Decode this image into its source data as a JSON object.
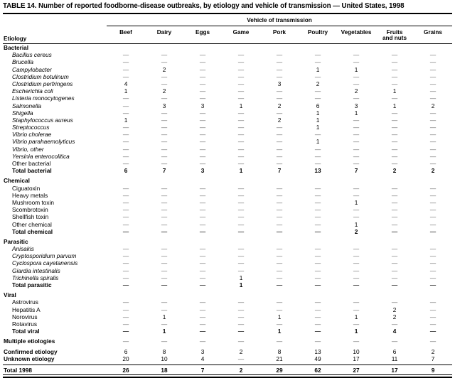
{
  "table": {
    "title": "TABLE 14. Number of reported foodborne-disease outbreaks, by etiology and vehicle of transmission — United States, 1998",
    "spanner": "Vehicle of transmission",
    "etiology_header": "Etiology",
    "dash": "—",
    "columns": [
      "Beef",
      "Dairy",
      "Eggs",
      "Game",
      "Pork",
      "Poultry",
      "Vegetables",
      "Fruits\nand nuts",
      "Grains"
    ],
    "sections": [
      {
        "header": "Bacterial",
        "gap_before": false,
        "rows": [
          {
            "label": "Bacillus cereus",
            "style": "species",
            "values": [
              "—",
              "—",
              "—",
              "—",
              "—",
              "—",
              "—",
              "—",
              "—"
            ]
          },
          {
            "label": "Brucella",
            "style": "species",
            "values": [
              "—",
              "—",
              "—",
              "—",
              "—",
              "—",
              "—",
              "—",
              "—"
            ]
          },
          {
            "label": "Campylobacter",
            "style": "species",
            "values": [
              "—",
              "2",
              "—",
              "—",
              "—",
              "1",
              "1",
              "—",
              "—"
            ]
          },
          {
            "label": "Clostridium botulinum",
            "style": "species",
            "values": [
              "—",
              "—",
              "—",
              "—",
              "—",
              "—",
              "—",
              "—",
              "—"
            ]
          },
          {
            "label": "Clostridium perfringens",
            "style": "species",
            "values": [
              "4",
              "—",
              "—",
              "—",
              "3",
              "2",
              "—",
              "—",
              "—"
            ]
          },
          {
            "label": "Escherichia coli",
            "style": "species",
            "values": [
              "1",
              "2",
              "—",
              "—",
              "—",
              "—",
              "2",
              "1",
              "—"
            ]
          },
          {
            "label": "Listeria monocytogenes",
            "style": "species",
            "values": [
              "—",
              "—",
              "—",
              "—",
              "—",
              "—",
              "—",
              "—",
              "—"
            ]
          },
          {
            "label": "Salmonella",
            "style": "species",
            "values": [
              "—",
              "3",
              "3",
              "1",
              "2",
              "6",
              "3",
              "1",
              "2"
            ]
          },
          {
            "label": "Shigella",
            "style": "species",
            "values": [
              "—",
              "—",
              "—",
              "—",
              "—",
              "1",
              "1",
              "—",
              "—"
            ]
          },
          {
            "label": "Staphylococcus aureus",
            "style": "species",
            "values": [
              "1",
              "—",
              "—",
              "—",
              "2",
              "1",
              "—",
              "—",
              "—"
            ]
          },
          {
            "label": "Streptococcus",
            "style": "species",
            "values": [
              "—",
              "—",
              "—",
              "—",
              "—",
              "1",
              "—",
              "—",
              "—"
            ]
          },
          {
            "label": "Vibrio cholerae",
            "style": "species",
            "values": [
              "—",
              "—",
              "—",
              "—",
              "—",
              "—",
              "—",
              "—",
              "—"
            ]
          },
          {
            "label": "Vibrio parahaemolyticus",
            "style": "species",
            "values": [
              "—",
              "—",
              "—",
              "—",
              "—",
              "1",
              "—",
              "—",
              "—"
            ]
          },
          {
            "label": "Vibrio, other",
            "style": "species",
            "values": [
              "—",
              "—",
              "—",
              "—",
              "—",
              "—",
              "—",
              "—",
              "—"
            ]
          },
          {
            "label": "Yersinia enterocolitica",
            "style": "species",
            "values": [
              "—",
              "—",
              "—",
              "—",
              "—",
              "—",
              "—",
              "—",
              "—"
            ]
          },
          {
            "label": "Other bacterial",
            "style": "plain",
            "values": [
              "—",
              "—",
              "—",
              "—",
              "—",
              "—",
              "—",
              "—",
              "—"
            ]
          },
          {
            "label": "Total bacterial",
            "style": "total",
            "values": [
              "6",
              "7",
              "3",
              "1",
              "7",
              "13",
              "7",
              "2",
              "2"
            ]
          }
        ]
      },
      {
        "header": "Chemical",
        "gap_before": true,
        "rows": [
          {
            "label": "Ciguatoxin",
            "style": "plain",
            "values": [
              "—",
              "—",
              "—",
              "—",
              "—",
              "—",
              "—",
              "—",
              "—"
            ]
          },
          {
            "label": "Heavy metals",
            "style": "plain",
            "values": [
              "—",
              "—",
              "—",
              "—",
              "—",
              "—",
              "—",
              "—",
              "—"
            ]
          },
          {
            "label": "Mushroom toxin",
            "style": "plain",
            "values": [
              "—",
              "—",
              "—",
              "—",
              "—",
              "—",
              "1",
              "—",
              "—"
            ]
          },
          {
            "label": "Scombrotoxin",
            "style": "plain",
            "values": [
              "—",
              "—",
              "—",
              "—",
              "—",
              "—",
              "—",
              "—",
              "—"
            ]
          },
          {
            "label": "Shellfish toxin",
            "style": "plain",
            "values": [
              "—",
              "—",
              "—",
              "—",
              "—",
              "—",
              "—",
              "—",
              "—"
            ]
          },
          {
            "label": "Other chemical",
            "style": "plain",
            "values": [
              "—",
              "—",
              "—",
              "—",
              "—",
              "—",
              "1",
              "—",
              "—"
            ]
          },
          {
            "label": "Total chemical",
            "style": "total",
            "values": [
              "—",
              "—",
              "—",
              "—",
              "—",
              "—",
              "2",
              "—",
              "—"
            ]
          }
        ]
      },
      {
        "header": "Parasitic",
        "gap_before": true,
        "rows": [
          {
            "label": "Anisakis",
            "style": "species",
            "values": [
              "—",
              "—",
              "—",
              "—",
              "—",
              "—",
              "—",
              "—",
              "—"
            ]
          },
          {
            "label": "Cryptosporidium parvum",
            "style": "species",
            "values": [
              "—",
              "—",
              "—",
              "—",
              "—",
              "—",
              "—",
              "—",
              "—"
            ]
          },
          {
            "label": "Cyclospora cayetanensis",
            "style": "species",
            "values": [
              "—",
              "—",
              "—",
              "—",
              "—",
              "—",
              "—",
              "—",
              "—"
            ]
          },
          {
            "label": "Giardia intestinalis",
            "style": "species",
            "values": [
              "—",
              "—",
              "—",
              "—",
              "—",
              "—",
              "—",
              "—",
              "—"
            ]
          },
          {
            "label": "Trichinella spiralis",
            "style": "species",
            "values": [
              "—",
              "—",
              "—",
              "1",
              "—",
              "—",
              "—",
              "—",
              "—"
            ]
          },
          {
            "label": "Total parasitic",
            "style": "total",
            "values": [
              "—",
              "—",
              "—",
              "1",
              "—",
              "—",
              "—",
              "—",
              "—"
            ]
          }
        ]
      },
      {
        "header": "Viral",
        "gap_before": true,
        "rows": [
          {
            "label": "Astrovirus",
            "style": "plain",
            "values": [
              "—",
              "—",
              "—",
              "—",
              "—",
              "—",
              "—",
              "—",
              "—"
            ]
          },
          {
            "label": "Hepatitis A",
            "style": "plain",
            "values": [
              "—",
              "—",
              "—",
              "—",
              "—",
              "—",
              "—",
              "2",
              "—"
            ]
          },
          {
            "label": "Norovirus",
            "style": "plain",
            "values": [
              "—",
              "1",
              "—",
              "—",
              "1",
              "—",
              "1",
              "2",
              "—"
            ]
          },
          {
            "label": "Rotavirus",
            "style": "plain",
            "values": [
              "—",
              "—",
              "—",
              "—",
              "—",
              "—",
              "—",
              "—",
              "—"
            ]
          },
          {
            "label": "Total viral",
            "style": "total",
            "values": [
              "—",
              "1",
              "—",
              "—",
              "1",
              "—",
              "1",
              "4",
              "—"
            ]
          }
        ]
      },
      {
        "header": null,
        "gap_before": true,
        "rows": [
          {
            "label": "Multiple etiologies",
            "style": "summary",
            "values": [
              "—",
              "—",
              "—",
              "—",
              "—",
              "—",
              "—",
              "—",
              "—"
            ]
          }
        ]
      },
      {
        "header": null,
        "gap_before": true,
        "rows": [
          {
            "label": "Confirmed etiology",
            "style": "summary",
            "values": [
              "6",
              "8",
              "3",
              "2",
              "8",
              "13",
              "10",
              "6",
              "2"
            ]
          },
          {
            "label": "Unknown etiology",
            "style": "summary",
            "values": [
              "20",
              "10",
              "4",
              "—",
              "21",
              "49",
              "17",
              "11",
              "7"
            ]
          }
        ]
      },
      {
        "header": null,
        "gap_before": false,
        "grand": true,
        "rows": [
          {
            "label": "Total 1998",
            "style": "grand",
            "values": [
              "26",
              "18",
              "7",
              "2",
              "29",
              "62",
              "27",
              "17",
              "9"
            ]
          }
        ]
      }
    ]
  }
}
